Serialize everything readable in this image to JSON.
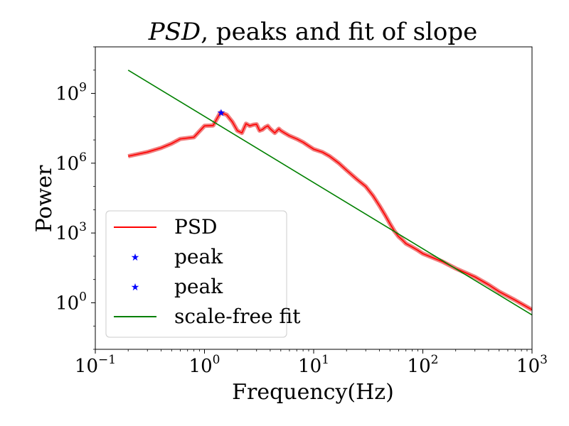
{
  "chart_data": {
    "type": "line",
    "title_italic": "PSD",
    "title_rest": ", peaks and fit of slope",
    "xlabel": "Frequency(Hz)",
    "ylabel": "Power",
    "xscale": "log",
    "yscale": "log",
    "xlim": [
      0.1,
      1000
    ],
    "ylim": [
      0.01,
      100000000000
    ],
    "xticks": [
      {
        "value": 0.1,
        "base": "10",
        "exp": "−1"
      },
      {
        "value": 1,
        "base": "10",
        "exp": "0"
      },
      {
        "value": 10,
        "base": "10",
        "exp": "1"
      },
      {
        "value": 100,
        "base": "10",
        "exp": "2"
      },
      {
        "value": 1000,
        "base": "10",
        "exp": "3"
      }
    ],
    "yticks": [
      {
        "value": 1,
        "base": "10",
        "exp": "0"
      },
      {
        "value": 1000,
        "base": "10",
        "exp": "3"
      },
      {
        "value": 1000000,
        "base": "10",
        "exp": "6"
      },
      {
        "value": 1000000000,
        "base": "10",
        "exp": "9"
      }
    ],
    "legend_position": "lower-left",
    "series": [
      {
        "name": "PSD",
        "kind": "line",
        "color": "#ff0000",
        "band_color": "#f08080",
        "x": [
          0.2,
          0.3,
          0.4,
          0.5,
          0.6,
          0.8,
          1.0,
          1.2,
          1.4,
          1.6,
          1.8,
          2.0,
          2.2,
          2.4,
          2.6,
          2.8,
          3.0,
          3.2,
          3.4,
          3.6,
          3.8,
          4.0,
          4.4,
          4.8,
          5.0,
          5.4,
          6,
          7,
          8,
          9,
          10,
          12,
          14,
          17,
          20,
          25,
          30,
          35,
          40,
          45,
          50,
          55,
          60,
          65,
          70,
          80,
          90,
          100,
          150,
          200,
          300,
          400,
          500,
          700,
          1000
        ],
        "y": [
          2000000,
          3000000,
          4500000,
          7000000,
          11000000,
          13000000,
          40000000,
          42000000,
          150000000,
          120000000,
          60000000,
          25000000,
          20000000,
          50000000,
          40000000,
          45000000,
          47000000,
          25000000,
          28000000,
          35000000,
          40000000,
          30000000,
          20000000,
          30000000,
          25000000,
          20000000,
          15000000,
          11000000,
          8000000,
          5500000,
          4000000,
          3000000,
          2000000,
          1000000,
          500000,
          200000,
          100000,
          40000,
          15000,
          6000,
          2500,
          1200,
          700,
          500,
          350,
          250,
          180,
          130,
          60,
          30,
          13,
          6,
          3,
          1.3,
          0.5
        ]
      },
      {
        "name": "peak",
        "kind": "marker",
        "color": "#0000ff",
        "x": [
          1.42
        ],
        "y": [
          150000000
        ]
      },
      {
        "name": "peak",
        "kind": "marker",
        "color": "#0000ff",
        "x": [],
        "y": []
      },
      {
        "name": "scale-free fit",
        "kind": "line",
        "color": "#008000",
        "x": [
          0.2,
          1000
        ],
        "y": [
          10000000000,
          0.3
        ]
      }
    ]
  }
}
